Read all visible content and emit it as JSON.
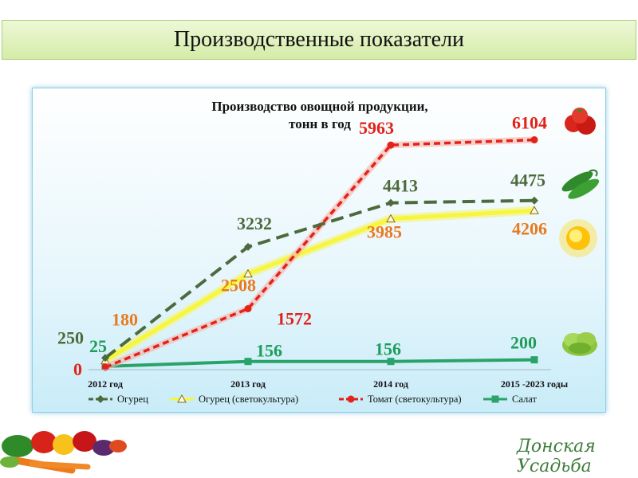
{
  "page_title": "Производственные показатели",
  "brand": "Донская Усадьба",
  "icons": [
    "tomato-icon",
    "cucumber-icon",
    "sun-icon",
    "lettuce-icon",
    "vegetables-basket-icon"
  ],
  "chart_data": {
    "type": "line",
    "title": "Производство овощной продукции,",
    "subtitle": "тонн в год",
    "categories": [
      "2012 год",
      "2013 год",
      "2014 год",
      "2015 -2023 годы"
    ],
    "series": [
      {
        "name": "Огурец",
        "values": [
          250,
          3232,
          4413,
          4475
        ],
        "labels": [
          "250",
          "3232",
          "4413",
          "4475"
        ],
        "color": "#4d6a3c",
        "style": "dashed",
        "marker": "diamond"
      },
      {
        "name": "Огурец (светокультура)",
        "values": [
          180,
          2508,
          3985,
          4206
        ],
        "labels": [
          "180",
          "2508",
          "3985",
          "4206"
        ],
        "color": "#f6f63c",
        "style": "solid",
        "marker": "triangle"
      },
      {
        "name": "Томат (светокультура)",
        "values": [
          0,
          1572,
          5963,
          6104
        ],
        "labels": [
          "0",
          "1572",
          "5963",
          "6104"
        ],
        "color": "#e2231a",
        "style": "dashed",
        "marker": "circle"
      },
      {
        "name": "Салат",
        "values": [
          25,
          156,
          156,
          200
        ],
        "labels": [
          "25",
          "156",
          "156",
          "200"
        ],
        "color": "#2aa36a",
        "style": "solid",
        "marker": "square"
      }
    ],
    "label_colors": [
      "#4d6a3c",
      "#e87a20",
      "#e2231a",
      "#1e9d5a"
    ],
    "grid": false,
    "legend_position": "bottom"
  }
}
